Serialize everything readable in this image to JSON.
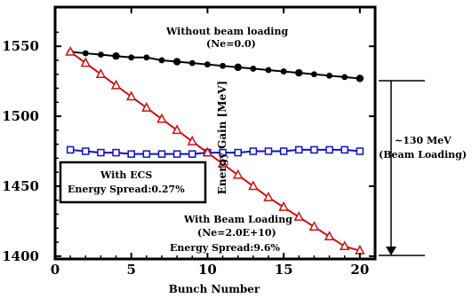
{
  "chart_data": {
    "type": "line",
    "xlabel": "Bunch Number",
    "ylabel": "Energy Gain [MeV]",
    "xlim": [
      0,
      21
    ],
    "ylim": [
      1398,
      1578
    ],
    "xticks": [
      0,
      5,
      10,
      15,
      20
    ],
    "yticks": [
      1400,
      1450,
      1500,
      1550
    ],
    "series": [
      {
        "label": "Without beam loading (Ne=0.0)",
        "color": "#000000",
        "marker": "circle-filled",
        "x": [
          1,
          2,
          3,
          4,
          5,
          6,
          7,
          8,
          9,
          10,
          11,
          12,
          13,
          14,
          15,
          16,
          17,
          18,
          19,
          20
        ],
        "y": [
          1546,
          1545,
          1544,
          1543,
          1542,
          1542,
          1540,
          1539,
          1538,
          1537,
          1536,
          1535,
          1534,
          1533,
          1532,
          1531,
          1530,
          1529,
          1528,
          1527
        ]
      },
      {
        "label": "With ECS",
        "color": "#1010cc",
        "marker": "square-open",
        "x": [
          1,
          2,
          3,
          4,
          5,
          6,
          7,
          8,
          9,
          10,
          11,
          12,
          13,
          14,
          15,
          16,
          17,
          18,
          19,
          20
        ],
        "y": [
          1476,
          1475,
          1474,
          1474,
          1473,
          1473,
          1473,
          1473,
          1473,
          1474,
          1474,
          1474,
          1475,
          1475,
          1475,
          1476,
          1476,
          1476,
          1476,
          1475
        ]
      },
      {
        "label": "With Beam Loading (Ne=2.0E+10)",
        "color": "#cc1010",
        "marker": "triangle-open",
        "x": [
          1,
          2,
          3,
          4,
          5,
          6,
          7,
          8,
          9,
          10,
          11,
          12,
          13,
          14,
          15,
          16,
          17,
          18,
          19,
          20
        ],
        "y": [
          1546,
          1538,
          1530,
          1522,
          1514,
          1506,
          1498,
          1490,
          1482,
          1474,
          1466,
          1458,
          1450,
          1442,
          1435,
          1428,
          1421,
          1414,
          1407,
          1404
        ]
      }
    ],
    "annotations": {
      "no_load_title": "Without   beam   loading",
      "no_load_ne": "(Ne=0.0)",
      "ecs_title": "With   ECS",
      "ecs_spread": "Energy     Spread:0.27%",
      "load_title": "With   Beam   Loading",
      "load_ne": "(Ne=2.0E+10)",
      "load_spread": "Energy     Spread:9.6%",
      "side_value": "~130     MeV",
      "side_label": "(Beam        Loading)"
    }
  }
}
